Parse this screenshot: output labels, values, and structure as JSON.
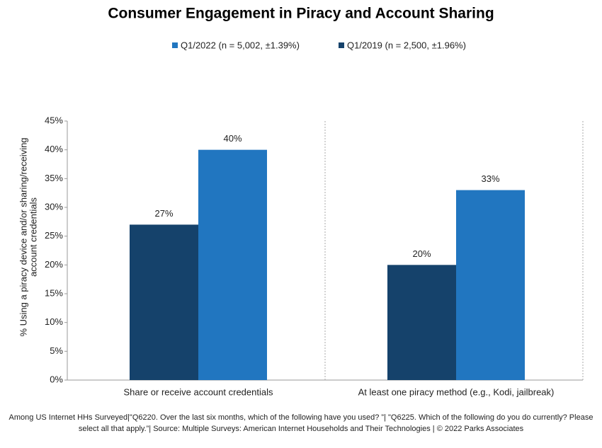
{
  "chart_data": {
    "type": "bar",
    "title": "Consumer Engagement in Piracy and Account Sharing",
    "y_label": [
      "% Using a piracy device and/or sharing/receiving",
      "account credentials"
    ],
    "categories": [
      "Share or receive account credentials",
      "At least one piracy method (e.g., Kodi, jailbreak)"
    ],
    "series": [
      {
        "name": "Q1/2022 (n = 5,002, ±1.39%)",
        "color": "#2176c0",
        "values": [
          40,
          33
        ],
        "value_labels": [
          "40%",
          "33%"
        ]
      },
      {
        "name": "Q1/2019 (n = 2,500, ±1.96%)",
        "color": "#15426b",
        "values": [
          27,
          20
        ],
        "value_labels": [
          "27%",
          "20%"
        ]
      }
    ],
    "ylim": [
      0,
      45
    ],
    "yticks": [
      {
        "value": 0,
        "label": "0%"
      },
      {
        "value": 5,
        "label": "5%"
      },
      {
        "value": 10,
        "label": "10%"
      },
      {
        "value": 15,
        "label": "15%"
      },
      {
        "value": 20,
        "label": "20%"
      },
      {
        "value": 25,
        "label": "25%"
      },
      {
        "value": 30,
        "label": "30%"
      },
      {
        "value": 35,
        "label": "35%"
      },
      {
        "value": 40,
        "label": "40%"
      },
      {
        "value": 45,
        "label": "45%"
      }
    ],
    "footnote": "Among US Internet HHs Surveyed|\"Q6220. Over the last six months, which of the following have you used? ”| \"Q6225. Which of the following do you do currently? Please select all that apply.”| Source: Multiple Surveys: American Internet Households and Their Technologies | © 2022 Parks Associates"
  }
}
